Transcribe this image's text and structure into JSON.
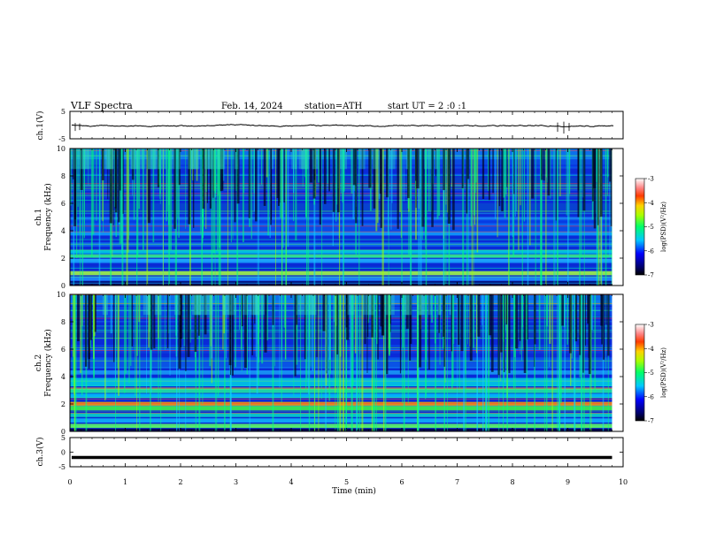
{
  "header": {
    "title": "VLF Spectra",
    "date": "Feb. 14, 2024",
    "station": "station=ATH",
    "start_ut": "start UT = 2 :0 :1"
  },
  "chart_data": [
    {
      "type": "line",
      "title": "",
      "ylabel": "ch.1(V)",
      "ylim": [
        -5,
        5
      ],
      "yticks": [
        "5",
        "-5"
      ],
      "xlim": [
        0,
        10
      ],
      "description_level": -0.2,
      "color": "#000000"
    },
    {
      "type": "heatmap",
      "ylabel": "ch.1",
      "ylabel2": "Frequency (kHz)",
      "ylim": [
        0,
        10
      ],
      "yticks": [
        "0",
        "2",
        "4",
        "6",
        "8",
        "10"
      ],
      "xlim": [
        0,
        9.8
      ],
      "colorbar": {
        "label": "log(PSD)(V²/Hz)",
        "ticks": [
          "-3",
          "-4",
          "-5",
          "-6",
          "-7"
        ],
        "range": [
          -7,
          -3
        ]
      }
    },
    {
      "type": "heatmap",
      "ylabel": "ch.2",
      "ylabel2": "Frequency (kHz)",
      "ylim": [
        0,
        10
      ],
      "yticks": [
        "0",
        "2",
        "4",
        "6",
        "8",
        "10"
      ],
      "xlim": [
        0,
        9.8
      ],
      "colorbar": {
        "label": "log(PSD)(V²/Hz)",
        "ticks": [
          "-3",
          "-4",
          "-5",
          "-6",
          "-7"
        ],
        "range": [
          -7,
          -3
        ]
      }
    },
    {
      "type": "line",
      "ylabel": "ch.3(V)",
      "ylim": [
        -5,
        5
      ],
      "yticks": [
        "5",
        "0",
        "-5"
      ],
      "xlim": [
        0,
        10
      ],
      "level": -1.8,
      "color": "#000000"
    }
  ],
  "xaxis": {
    "label": "Time (min)",
    "ticks": [
      "0",
      "1",
      "2",
      "3",
      "4",
      "5",
      "6",
      "7",
      "8",
      "9",
      "10"
    ],
    "range": [
      0,
      10
    ]
  }
}
